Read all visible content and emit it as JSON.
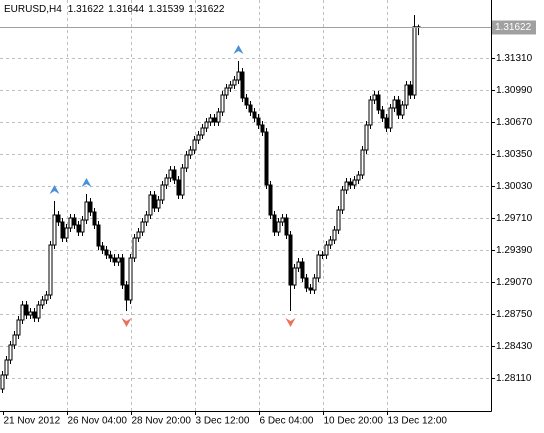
{
  "chart_data": {
    "type": "candlestick",
    "title": "EURUSD,H4",
    "open": [
      1.28,
      1.2814,
      1.2829,
      1.2844,
      1.2854,
      1.2869,
      1.2884,
      1.2874,
      1.2877,
      1.2871,
      1.2884,
      1.2889,
      1.2894,
      1.2944,
      1.2974,
      1.2967,
      1.2951,
      1.2961,
      1.2971,
      1.2964,
      1.2957,
      1.2969,
      1.2987,
      1.2977,
      1.2964,
      1.2943,
      1.2939,
      1.2934,
      1.2931,
      1.2927,
      1.2931,
      1.2904,
      1.2889,
      1.2931,
      1.2951,
      1.2957,
      1.2967,
      1.2974,
      1.2994,
      1.2981,
      1.2989,
      1.3004,
      1.3011,
      1.3019,
      1.3009,
      1.2994,
      1.3021,
      1.3034,
      1.3039,
      1.3049,
      1.3054,
      1.3061,
      1.3067,
      1.3071,
      1.3067,
      1.3077,
      1.3094,
      1.3101,
      1.3104,
      1.3109,
      1.3117,
      1.3091,
      1.3084,
      1.3077,
      1.3071,
      1.3064,
      1.3057,
      1.3004,
      1.2974,
      1.2957,
      1.2967,
      1.2971,
      1.2954,
      1.2904,
      1.2921,
      1.2927,
      1.2911,
      1.2901,
      1.2899,
      1.2911,
      1.2934,
      1.2934,
      1.2944,
      1.2949,
      1.2959,
      1.2979,
      1.2999,
      1.3007,
      1.3004,
      1.3009,
      1.3014,
      1.3039,
      1.3064,
      1.3089,
      1.3094,
      1.3079,
      1.3071,
      1.3061,
      1.3081,
      1.3089,
      1.3074,
      1.3084,
      1.3104,
      1.3094,
      1.31622
    ],
    "high": [
      1.2818,
      1.2833,
      1.2848,
      1.2858,
      1.2873,
      1.2888,
      1.2888,
      1.2881,
      1.2881,
      1.2888,
      1.2893,
      1.2898,
      1.2948,
      1.2988,
      1.2978,
      1.2971,
      1.2965,
      1.2975,
      1.2975,
      1.2968,
      1.2973,
      1.2995,
      1.2991,
      1.2981,
      1.2968,
      1.2947,
      1.2943,
      1.2938,
      1.2935,
      1.2935,
      1.2935,
      1.2908,
      1.2935,
      1.2955,
      1.2961,
      1.2971,
      1.2978,
      1.2998,
      1.2998,
      1.2993,
      1.3008,
      1.3015,
      1.3023,
      1.3023,
      1.3013,
      1.3025,
      1.3038,
      1.3043,
      1.3053,
      1.3058,
      1.3065,
      1.3071,
      1.3075,
      1.3075,
      1.3081,
      1.3098,
      1.3105,
      1.3108,
      1.3113,
      1.3128,
      1.3121,
      1.3095,
      1.3088,
      1.3081,
      1.3075,
      1.3068,
      1.3061,
      1.3008,
      1.2978,
      1.2971,
      1.2975,
      1.2975,
      1.2958,
      1.2925,
      1.2931,
      1.2931,
      1.2915,
      1.2905,
      1.2915,
      1.2938,
      1.2938,
      1.2948,
      1.2953,
      1.2963,
      1.2983,
      1.3003,
      1.3011,
      1.3011,
      1.3013,
      1.3018,
      1.3043,
      1.3068,
      1.3093,
      1.3098,
      1.3098,
      1.3083,
      1.3075,
      1.3085,
      1.3093,
      1.3093,
      1.3088,
      1.3108,
      1.3108,
      1.3174,
      1.31644
    ],
    "low": [
      1.2796,
      1.281,
      1.2825,
      1.284,
      1.285,
      1.2865,
      1.287,
      1.287,
      1.2867,
      1.2867,
      1.288,
      1.2885,
      1.289,
      1.294,
      1.2963,
      1.2947,
      1.2947,
      1.2957,
      1.296,
      1.2953,
      1.2953,
      1.2965,
      1.2973,
      1.296,
      1.2939,
      1.2935,
      1.293,
      1.2927,
      1.2923,
      1.2923,
      1.29,
      1.2878,
      1.2885,
      1.2927,
      1.2947,
      1.2953,
      1.2963,
      1.297,
      1.2977,
      1.2977,
      1.2985,
      1.3,
      1.3007,
      1.3005,
      1.299,
      1.299,
      1.3017,
      1.303,
      1.3035,
      1.3045,
      1.305,
      1.3057,
      1.3063,
      1.3063,
      1.3063,
      1.3073,
      1.309,
      1.3097,
      1.31,
      1.3105,
      1.3087,
      1.308,
      1.3073,
      1.3067,
      1.306,
      1.3053,
      1.3,
      1.297,
      1.2953,
      1.2953,
      1.2963,
      1.295,
      1.2878,
      1.29,
      1.2917,
      1.2907,
      1.2897,
      1.2895,
      1.2895,
      1.2907,
      1.293,
      1.293,
      1.294,
      1.2945,
      1.2955,
      1.2975,
      1.2995,
      1.3,
      1.3,
      1.3005,
      1.301,
      1.3035,
      1.306,
      1.3085,
      1.3075,
      1.3067,
      1.3057,
      1.3057,
      1.3077,
      1.307,
      1.307,
      1.308,
      1.309,
      1.309,
      1.31539
    ],
    "close": [
      1.2814,
      1.2829,
      1.2844,
      1.2854,
      1.2869,
      1.2884,
      1.2874,
      1.2877,
      1.2871,
      1.2884,
      1.2889,
      1.2894,
      1.2944,
      1.2974,
      1.2967,
      1.2951,
      1.2961,
      1.2971,
      1.2964,
      1.2957,
      1.2969,
      1.2987,
      1.2977,
      1.2964,
      1.2943,
      1.2939,
      1.2934,
      1.2931,
      1.2927,
      1.2931,
      1.2904,
      1.2889,
      1.2931,
      1.2951,
      1.2957,
      1.2967,
      1.2974,
      1.2994,
      1.2981,
      1.2989,
      1.3004,
      1.3011,
      1.3019,
      1.3009,
      1.2994,
      1.3021,
      1.3034,
      1.3039,
      1.3049,
      1.3054,
      1.3061,
      1.3067,
      1.3071,
      1.3067,
      1.3077,
      1.3094,
      1.3101,
      1.3104,
      1.3109,
      1.3117,
      1.3091,
      1.3084,
      1.3077,
      1.3071,
      1.3064,
      1.3057,
      1.3004,
      1.2974,
      1.2957,
      1.2967,
      1.2971,
      1.2954,
      1.2904,
      1.2921,
      1.2927,
      1.2911,
      1.2901,
      1.2899,
      1.2911,
      1.2934,
      1.2934,
      1.2944,
      1.2949,
      1.2959,
      1.2979,
      1.2999,
      1.3007,
      1.3004,
      1.3009,
      1.3014,
      1.3039,
      1.3064,
      1.3089,
      1.3094,
      1.3079,
      1.3071,
      1.3061,
      1.3081,
      1.3089,
      1.3074,
      1.3084,
      1.3104,
      1.3094,
      1.31622,
      1.31622
    ],
    "up_fractals": [
      13,
      21,
      59
    ],
    "down_fractals": [
      31,
      72
    ],
    "ylim": [
      1.2778,
      1.3189
    ],
    "yticks": [
      {
        "value": 1.2811,
        "label": "1.28110"
      },
      {
        "value": 1.2843,
        "label": "1.28430"
      },
      {
        "value": 1.2875,
        "label": "1.28750"
      },
      {
        "value": 1.2907,
        "label": "1.29070"
      },
      {
        "value": 1.2939,
        "label": "1.29390"
      },
      {
        "value": 1.2971,
        "label": "1.29710"
      },
      {
        "value": 1.3003,
        "label": "1.30030"
      },
      {
        "value": 1.3035,
        "label": "1.30350"
      },
      {
        "value": 1.3067,
        "label": "1.30670"
      },
      {
        "value": 1.3099,
        "label": "1.30990"
      },
      {
        "value": 1.3131,
        "label": "1.31310"
      }
    ],
    "xticks": [
      {
        "value": 0,
        "label": "21 Nov 2012"
      },
      {
        "value": 16,
        "label": "26 Nov 04:00"
      },
      {
        "value": 32,
        "label": "28 Nov 20:00"
      },
      {
        "value": 48,
        "label": "3 Dec 12:00"
      },
      {
        "value": 64,
        "label": "6 Dec 04:00"
      },
      {
        "value": 80,
        "label": "10 Dec 20:00"
      },
      {
        "value": 96,
        "label": "13 Dec 12:00"
      }
    ],
    "grid": true,
    "up_color": "#ffffff",
    "down_color": "#000000",
    "line_color": "#000000",
    "up_arrow_color": "#4a90d9",
    "down_arrow_color": "#e8735a"
  }
}
